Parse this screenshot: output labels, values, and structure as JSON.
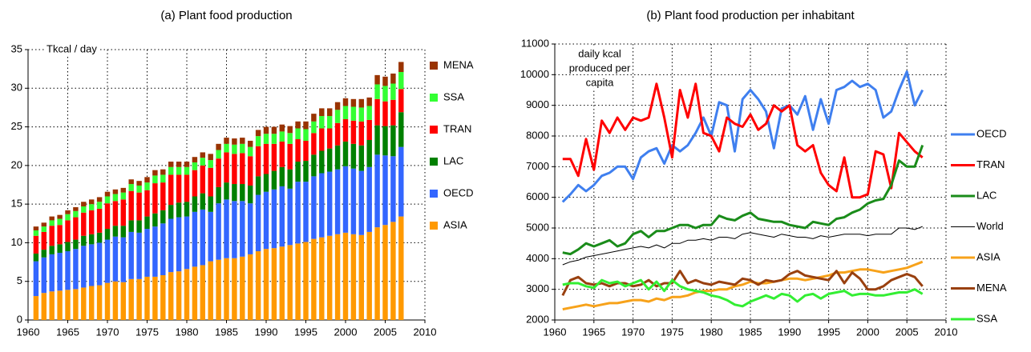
{
  "chart_data": [
    {
      "type": "bar",
      "stacked": true,
      "title": "(a) Plant food production",
      "annotation": [
        "Tkcal / day"
      ],
      "x": [
        1961,
        1962,
        1963,
        1964,
        1965,
        1966,
        1967,
        1968,
        1969,
        1970,
        1971,
        1972,
        1973,
        1974,
        1975,
        1976,
        1977,
        1978,
        1979,
        1980,
        1981,
        1982,
        1983,
        1984,
        1985,
        1986,
        1987,
        1988,
        1989,
        1990,
        1991,
        1992,
        1993,
        1994,
        1995,
        1996,
        1997,
        1998,
        1999,
        2000,
        2001,
        2002,
        2003,
        2004,
        2005,
        2006,
        2007
      ],
      "xlim": [
        1960,
        2010
      ],
      "xticks": [
        1960,
        1965,
        1970,
        1975,
        1980,
        1985,
        1990,
        1995,
        2000,
        2005,
        2010
      ],
      "ylim": [
        0,
        35
      ],
      "yticks": [
        0,
        5,
        10,
        15,
        20,
        25,
        30,
        35
      ],
      "grid": true,
      "series": [
        {
          "name": "ASIA",
          "color": "#ff9900",
          "values": [
            3.1,
            3.5,
            3.7,
            3.8,
            3.9,
            4.0,
            4.2,
            4.4,
            4.5,
            4.8,
            5.0,
            4.9,
            5.3,
            5.3,
            5.6,
            5.6,
            5.8,
            6.2,
            6.3,
            6.6,
            6.9,
            7.1,
            7.6,
            7.8,
            8.0,
            8.0,
            8.2,
            8.5,
            8.9,
            9.2,
            9.3,
            9.5,
            9.7,
            9.9,
            10.1,
            10.5,
            10.7,
            10.9,
            11.1,
            11.3,
            11.1,
            11.0,
            11.4,
            12.0,
            12.3,
            12.7,
            13.4
          ]
        },
        {
          "name": "OECD",
          "color": "#3366ff",
          "values": [
            4.5,
            4.6,
            4.8,
            4.9,
            5.0,
            5.2,
            5.4,
            5.4,
            5.5,
            5.6,
            5.8,
            5.8,
            6.1,
            6.0,
            6.2,
            6.5,
            6.7,
            6.9,
            7.0,
            6.8,
            7.1,
            7.2,
            6.4,
            7.3,
            7.6,
            7.4,
            7.2,
            6.6,
            7.3,
            7.4,
            7.6,
            7.8,
            7.3,
            8.0,
            7.8,
            8.1,
            8.3,
            8.3,
            8.4,
            8.6,
            8.5,
            8.3,
            8.4,
            9.4,
            9.0,
            8.5,
            9.0
          ]
        },
        {
          "name": "LAC",
          "color": "#008000",
          "values": [
            1.0,
            1.0,
            1.1,
            1.1,
            1.2,
            1.2,
            1.3,
            1.3,
            1.3,
            1.4,
            1.4,
            1.5,
            1.5,
            1.6,
            1.6,
            1.7,
            1.7,
            1.8,
            1.9,
            1.9,
            2.0,
            2.1,
            2.0,
            2.1,
            2.2,
            2.2,
            2.2,
            2.3,
            2.4,
            2.3,
            2.4,
            2.5,
            2.5,
            2.6,
            2.7,
            2.8,
            2.9,
            3.0,
            3.1,
            3.2,
            3.2,
            3.3,
            3.5,
            3.8,
            3.8,
            4.0,
            4.5
          ]
        },
        {
          "name": "TRAN",
          "color": "#ff0000",
          "values": [
            2.3,
            2.3,
            2.6,
            2.5,
            2.8,
            2.9,
            3.0,
            3.1,
            3.1,
            3.3,
            3.2,
            3.4,
            3.8,
            3.6,
            3.4,
            3.9,
            3.6,
            3.9,
            3.6,
            3.5,
            3.4,
            3.6,
            3.7,
            3.7,
            3.9,
            3.9,
            4.0,
            3.8,
            3.9,
            3.9,
            3.5,
            3.3,
            3.3,
            2.9,
            2.6,
            2.8,
            2.9,
            2.6,
            2.9,
            2.9,
            3.0,
            3.1,
            2.6,
            3.4,
            3.2,
            3.3,
            3.0
          ]
        },
        {
          "name": "SSA",
          "color": "#33ff33",
          "values": [
            0.7,
            0.7,
            0.7,
            0.8,
            0.8,
            0.8,
            0.8,
            0.8,
            0.9,
            0.9,
            0.9,
            0.9,
            0.9,
            0.9,
            1.0,
            1.0,
            1.0,
            1.0,
            1.0,
            1.0,
            1.0,
            1.0,
            1.0,
            1.1,
            1.1,
            1.2,
            1.2,
            1.2,
            1.3,
            1.3,
            1.3,
            1.3,
            1.4,
            1.4,
            1.5,
            1.5,
            1.6,
            1.6,
            1.7,
            1.7,
            1.8,
            1.8,
            1.8,
            1.9,
            2.0,
            2.1,
            2.2
          ]
        },
        {
          "name": "MENA",
          "color": "#993300",
          "values": [
            0.5,
            0.5,
            0.5,
            0.5,
            0.5,
            0.5,
            0.6,
            0.6,
            0.6,
            0.6,
            0.6,
            0.6,
            0.6,
            0.6,
            0.7,
            0.7,
            0.7,
            0.7,
            0.7,
            0.7,
            0.7,
            0.7,
            0.8,
            0.8,
            0.8,
            0.8,
            0.8,
            0.8,
            0.8,
            0.9,
            0.9,
            0.9,
            0.9,
            0.9,
            1.0,
            1.0,
            1.0,
            1.0,
            1.0,
            1.0,
            1.0,
            1.1,
            1.1,
            1.2,
            1.2,
            1.3,
            1.3
          ]
        }
      ]
    },
    {
      "type": "line",
      "title": "(b) Plant food production per inhabitant",
      "annotation": [
        "daily kcal",
        "produced per",
        "capita"
      ],
      "x": [
        1961,
        1962,
        1963,
        1964,
        1965,
        1966,
        1967,
        1968,
        1969,
        1970,
        1971,
        1972,
        1973,
        1974,
        1975,
        1976,
        1977,
        1978,
        1979,
        1980,
        1981,
        1982,
        1983,
        1984,
        1985,
        1986,
        1987,
        1988,
        1989,
        1990,
        1991,
        1992,
        1993,
        1994,
        1995,
        1996,
        1997,
        1998,
        1999,
        2000,
        2001,
        2002,
        2003,
        2004,
        2005,
        2006,
        2007
      ],
      "xlim": [
        1960,
        2010
      ],
      "xticks": [
        1960,
        1965,
        1970,
        1975,
        1980,
        1985,
        1990,
        1995,
        2000,
        2005,
        2010
      ],
      "ylim": [
        2000,
        11000
      ],
      "yticks": [
        2000,
        3000,
        4000,
        5000,
        6000,
        7000,
        8000,
        9000,
        10000,
        11000
      ],
      "grid": true,
      "series": [
        {
          "name": "OECD",
          "color": "#3f7fef",
          "width": 3,
          "values": [
            5850,
            6100,
            6400,
            6200,
            6400,
            6700,
            6800,
            7000,
            7000,
            6600,
            7300,
            7500,
            7600,
            7100,
            7700,
            7500,
            7700,
            8100,
            8600,
            8000,
            9100,
            9000,
            7500,
            9200,
            9500,
            9200,
            8800,
            7600,
            8900,
            9000,
            8700,
            9300,
            8200,
            9200,
            8400,
            9500,
            9600,
            9800,
            9600,
            9700,
            9500,
            8600,
            8800,
            9500,
            10100,
            9000,
            9500
          ]
        },
        {
          "name": "TRAN",
          "color": "#ff0000",
          "width": 3,
          "values": [
            7250,
            7250,
            6700,
            7900,
            6900,
            8500,
            8100,
            8600,
            8200,
            8600,
            8500,
            8600,
            9700,
            8600,
            7300,
            9500,
            8600,
            9700,
            8100,
            8000,
            7500,
            8600,
            8400,
            8300,
            8700,
            8200,
            8400,
            9000,
            8800,
            9000,
            7700,
            7500,
            7700,
            6800,
            6400,
            6200,
            7300,
            6000,
            6000,
            6100,
            7500,
            7400,
            6300,
            8100,
            7800,
            7500,
            7300
          ]
        },
        {
          "name": "LAC",
          "color": "#1a8c1a",
          "width": 3,
          "values": [
            4200,
            4150,
            4300,
            4500,
            4400,
            4500,
            4600,
            4400,
            4500,
            4800,
            4900,
            4700,
            4900,
            4900,
            5000,
            5100,
            5100,
            5000,
            5100,
            5100,
            5400,
            5300,
            5250,
            5400,
            5500,
            5300,
            5250,
            5200,
            5200,
            5100,
            5050,
            5000,
            5200,
            5150,
            5100,
            5300,
            5350,
            5500,
            5600,
            5800,
            5900,
            5950,
            6400,
            7200,
            7000,
            7000,
            7700
          ]
        },
        {
          "name": "World",
          "color": "#000000",
          "width": 1,
          "values": [
            3800,
            3900,
            3950,
            4050,
            4100,
            4150,
            4200,
            4250,
            4300,
            4350,
            4400,
            4350,
            4450,
            4350,
            4500,
            4500,
            4600,
            4600,
            4650,
            4600,
            4700,
            4700,
            4650,
            4800,
            4850,
            4800,
            4750,
            4700,
            4800,
            4750,
            4700,
            4700,
            4650,
            4750,
            4700,
            4750,
            4800,
            4800,
            4800,
            4750,
            4800,
            4800,
            4800,
            5000,
            5000,
            4950,
            5050
          ]
        },
        {
          "name": "ASIA",
          "color": "#f7a21a",
          "width": 3,
          "values": [
            2350,
            2400,
            2450,
            2500,
            2450,
            2500,
            2550,
            2550,
            2600,
            2650,
            2650,
            2600,
            2700,
            2650,
            2750,
            2750,
            2800,
            2900,
            2950,
            2950,
            3000,
            3000,
            3100,
            3150,
            3250,
            3200,
            3200,
            3250,
            3300,
            3350,
            3350,
            3300,
            3350,
            3400,
            3450,
            3550,
            3550,
            3600,
            3650,
            3650,
            3600,
            3550,
            3600,
            3650,
            3700,
            3800,
            3900
          ]
        },
        {
          "name": "MENA",
          "color": "#99400f",
          "width": 3,
          "values": [
            2800,
            3300,
            3400,
            3200,
            3150,
            3200,
            3100,
            3200,
            3200,
            3100,
            3150,
            3300,
            3100,
            3200,
            3200,
            3600,
            3200,
            3300,
            3200,
            3150,
            3250,
            3200,
            3150,
            3350,
            3300,
            3150,
            3300,
            3250,
            3300,
            3500,
            3600,
            3450,
            3400,
            3350,
            3300,
            3600,
            3200,
            3550,
            3350,
            3000,
            3000,
            3100,
            3300,
            3400,
            3500,
            3400,
            3100
          ]
        },
        {
          "name": "SSA",
          "color": "#33ee33",
          "width": 3,
          "values": [
            3150,
            3200,
            3200,
            3100,
            3050,
            3300,
            3200,
            3250,
            3100,
            3200,
            3300,
            3000,
            3250,
            2950,
            3300,
            3100,
            3000,
            2950,
            2900,
            2800,
            2750,
            2650,
            2500,
            2450,
            2600,
            2700,
            2800,
            2700,
            2850,
            2800,
            2600,
            2800,
            2850,
            2700,
            2850,
            2900,
            2950,
            2800,
            2850,
            2850,
            2800,
            2800,
            2850,
            2900,
            2900,
            3000,
            2850
          ]
        }
      ]
    }
  ]
}
